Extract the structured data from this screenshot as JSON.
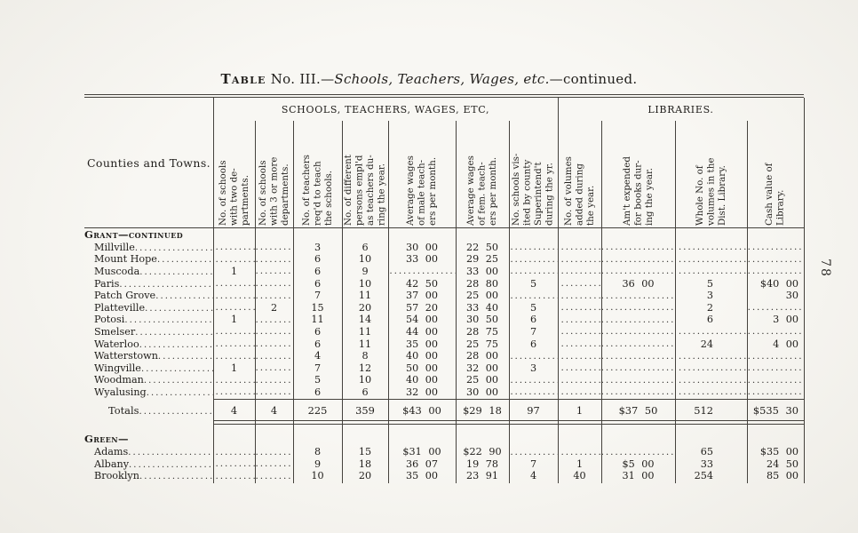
{
  "page": {
    "title": {
      "smallcaps": "Table",
      "prefix": " No. III.—",
      "italic": "Schools, Teachers, Wages, etc.",
      "suffix": "—continued."
    },
    "page_number": "78"
  },
  "table": {
    "corner_label": "Counties and Towns.",
    "groups": [
      {
        "label": "SCHOOLS, TEACHERS, WAGES, ETC,"
      },
      {
        "label": "LIBRARIES."
      }
    ],
    "columns": [
      {
        "label": "No. of schools\nwith two de-\npartments."
      },
      {
        "label": "No. of schools\nwith 3 or more\ndepartments."
      },
      {
        "label": "No. of teachers\nreq'd to teach\nthe schools."
      },
      {
        "label": "No. of different\npersons empl'd\nas teachers du-\nring the year."
      },
      {
        "label": "Average wages\nof male teach-\ners per month."
      },
      {
        "label": "Average wages\nof fem. teach-\ners per month."
      },
      {
        "label": "No. schools vis-\nited by county\nSuperintend't\nduring the yr."
      },
      {
        "label": "No. of volumes\nadded during\nthe year."
      },
      {
        "label": "Am't expended\nfor books dur-\ning the year."
      },
      {
        "label": "Whole No. of\nvolumes in the\nDist. Library."
      },
      {
        "label": "Cash value of\nLibrary."
      }
    ],
    "sections": [
      {
        "header": "Grant—continued",
        "rows": [
          {
            "name": "Millville",
            "cells": [
              "",
              "",
              "3",
              "6",
              "30 00",
              "22 50",
              "",
              "",
              "",
              "",
              ""
            ]
          },
          {
            "name": "Mount Hope",
            "cells": [
              "",
              "",
              "6",
              "10",
              "33 00",
              "29 25",
              "",
              "",
              "",
              "",
              ""
            ]
          },
          {
            "name": "Muscoda",
            "cells": [
              "1",
              "",
              "6",
              "9",
              "",
              "33 00",
              "",
              "",
              "",
              "",
              ""
            ]
          },
          {
            "name": "Paris",
            "cells": [
              "",
              "",
              "6",
              "10",
              "42 50",
              "28 80",
              "5",
              "",
              "36 00",
              "5",
              "$40 00"
            ]
          },
          {
            "name": "Patch Grove",
            "cells": [
              "",
              "",
              "7",
              "11",
              "37 00",
              "25 00",
              "",
              "",
              "",
              "3",
              "30"
            ]
          },
          {
            "name": "Platteville",
            "cells": [
              "",
              "2",
              "15",
              "20",
              "57 20",
              "33 40",
              "5",
              "",
              "",
              "2",
              ""
            ]
          },
          {
            "name": "Potosi",
            "cells": [
              "1",
              "",
              "11",
              "14",
              "54 00",
              "30 50",
              "6",
              "",
              "",
              "6",
              "3 00"
            ]
          },
          {
            "name": "Smelser",
            "cells": [
              "",
              "",
              "6",
              "11",
              "44 00",
              "28 75",
              "7",
              "",
              "",
              "",
              ""
            ]
          },
          {
            "name": "Waterloo",
            "cells": [
              "",
              "",
              "6",
              "11",
              "35 00",
              "25 75",
              "6",
              "",
              "",
              "24",
              "4 00"
            ]
          },
          {
            "name": "Watterstown",
            "cells": [
              "",
              "",
              "4",
              "8",
              "40 00",
              "28 00",
              "",
              "",
              "",
              "",
              ""
            ]
          },
          {
            "name": "Wingville",
            "cells": [
              "1",
              "",
              "7",
              "12",
              "50 00",
              "32 00",
              "3",
              "",
              "",
              "",
              ""
            ]
          },
          {
            "name": "Woodman",
            "cells": [
              "",
              "",
              "5",
              "10",
              "40 00",
              "25 00",
              "",
              "",
              "",
              "",
              ""
            ]
          },
          {
            "name": "Wyalusing",
            "cells": [
              "",
              "",
              "6",
              "6",
              "32 00",
              "30 00",
              "",
              "",
              "",
              "",
              ""
            ]
          }
        ],
        "totals": {
          "label": "Totals",
          "cells": [
            "4",
            "4",
            "225",
            "359",
            "$43 00",
            "$29 18",
            "97",
            "1",
            "$37 50",
            "512",
            "$535 30"
          ]
        }
      },
      {
        "header": "Green—",
        "rows": [
          {
            "name": "Adams",
            "cells": [
              "",
              "",
              "8",
              "15",
              "$31 00",
              "$22 90",
              "",
              "",
              "",
              "65",
              "$35 00"
            ]
          },
          {
            "name": "Albany",
            "cells": [
              "",
              "",
              "9",
              "18",
              "36 07",
              "19 78",
              "7",
              "1",
              "$5 00",
              "33",
              "24 50"
            ]
          },
          {
            "name": "Brooklyn",
            "cells": [
              "",
              "",
              "10",
              "20",
              "35 00",
              "23 91",
              "4",
              "40",
              "31 00",
              "254",
              "85 00"
            ]
          }
        ],
        "totals": null
      }
    ]
  }
}
